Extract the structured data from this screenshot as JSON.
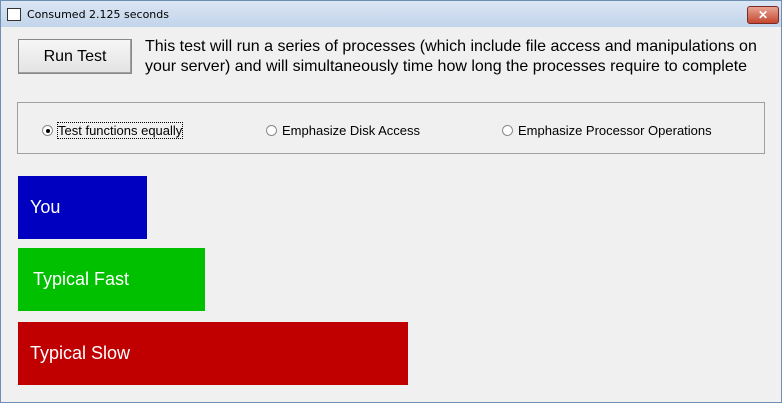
{
  "window": {
    "title": "Consumed 2.125 seconds",
    "close_label": "✕"
  },
  "run_button": "Run Test",
  "description": "This test will run a series of processes (which include file access and manipulations on your server) and will simultaneously time how long the processes require to complete",
  "options": [
    {
      "label": "Test functions equally",
      "selected": true
    },
    {
      "label": "Emphasize Disk Access",
      "selected": false
    },
    {
      "label": "Emphasize Processor Operations",
      "selected": false
    }
  ],
  "results": [
    {
      "label": "You",
      "color": "#0000c0",
      "relative_length": 0.33
    },
    {
      "label": "Typical Fast",
      "color": "#00c000",
      "relative_length": 0.48
    },
    {
      "label": "Typical Slow",
      "color": "#c00000",
      "relative_length": 1.0
    }
  ]
}
